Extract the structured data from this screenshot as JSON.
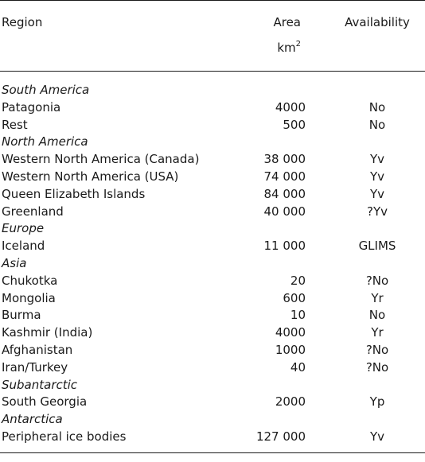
{
  "header": {
    "region_label": "Region",
    "area_label": "Area",
    "area_unit_base": "km",
    "area_unit_exp": "2",
    "availability_label": "Availability"
  },
  "rows": [
    {
      "kind": "group",
      "region": "South America",
      "area": "",
      "availability": ""
    },
    {
      "kind": "item",
      "region": "Patagonia",
      "area": "4000",
      "availability": "No"
    },
    {
      "kind": "item",
      "region": "Rest",
      "area": "500",
      "availability": "No"
    },
    {
      "kind": "group",
      "region": "North America",
      "area": "",
      "availability": ""
    },
    {
      "kind": "item",
      "region": "Western North America (Canada)",
      "area": "38 000",
      "availability": "Yv"
    },
    {
      "kind": "item",
      "region": "Western North America (USA)",
      "area": "74 000",
      "availability": "Yv"
    },
    {
      "kind": "item",
      "region": "Queen Elizabeth Islands",
      "area": "84 000",
      "availability": "Yv"
    },
    {
      "kind": "item",
      "region": "Greenland",
      "area": "40 000",
      "availability": "?Yv"
    },
    {
      "kind": "group",
      "region": "Europe",
      "area": "",
      "availability": ""
    },
    {
      "kind": "item",
      "region": "Iceland",
      "area": "11 000",
      "availability": "GLIMS"
    },
    {
      "kind": "group",
      "region": "Asia",
      "area": "",
      "availability": ""
    },
    {
      "kind": "item",
      "region": "Chukotka",
      "area": "20",
      "availability": "?No"
    },
    {
      "kind": "item",
      "region": "Mongolia",
      "area": "600",
      "availability": "Yr"
    },
    {
      "kind": "item",
      "region": "Burma",
      "area": "10",
      "availability": "No"
    },
    {
      "kind": "item",
      "region": "Kashmir (India)",
      "area": "4000",
      "availability": "Yr"
    },
    {
      "kind": "item",
      "region": "Afghanistan",
      "area": "1000",
      "availability": "?No"
    },
    {
      "kind": "item",
      "region": "Iran/Turkey",
      "area": "40",
      "availability": "?No"
    },
    {
      "kind": "group",
      "region": "Subantarctic",
      "area": "",
      "availability": ""
    },
    {
      "kind": "item",
      "region": "South Georgia",
      "area": "2000",
      "availability": "Yp"
    },
    {
      "kind": "group",
      "region": "Antarctica",
      "area": "",
      "availability": ""
    },
    {
      "kind": "item",
      "region": "Peripheral ice bodies",
      "area": "127 000",
      "availability": "Yv"
    }
  ]
}
